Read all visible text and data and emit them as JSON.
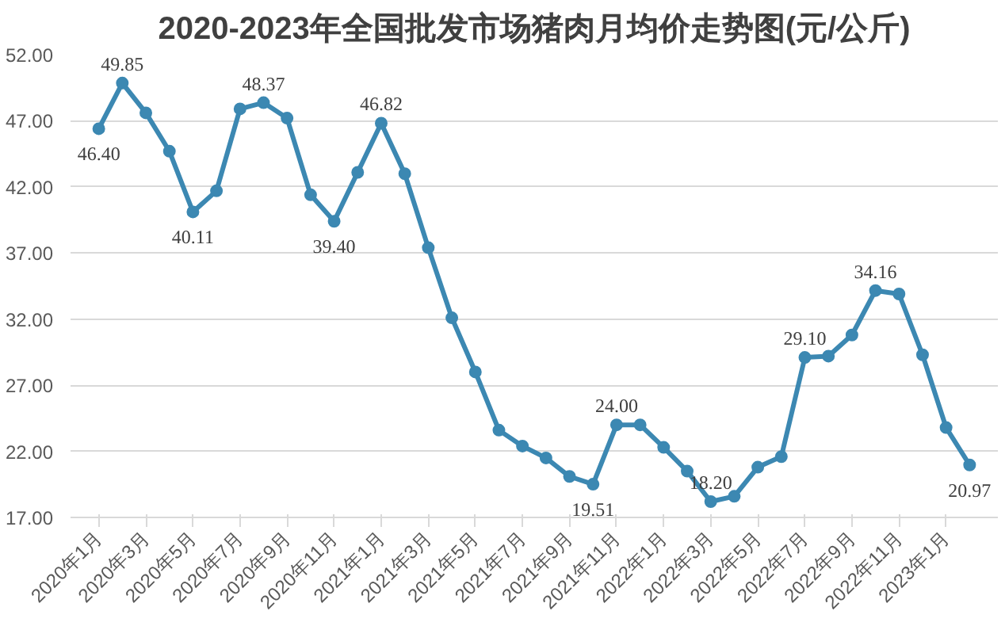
{
  "chart_data": {
    "type": "line",
    "title": "2020-2023年全国批发市场猪肉月均价走势图(元/公斤)",
    "categories": [
      "2020年1月",
      null,
      "2020年3月",
      null,
      "2020年5月",
      null,
      "2020年7月",
      null,
      "2020年9月",
      null,
      "2020年11月",
      null,
      "2021年1月",
      null,
      "2021年3月",
      null,
      "2021年5月",
      null,
      "2021年7月",
      null,
      "2021年9月",
      null,
      "2021年11月",
      null,
      "2022年1月",
      null,
      "2022年3月",
      null,
      "2022年5月",
      null,
      "2022年7月",
      null,
      "2022年9月",
      null,
      "2022年11月",
      null,
      "2023年1月",
      null
    ],
    "series": [
      {
        "color": "#3c88b2",
        "values": [
          46.4,
          49.85,
          47.6,
          44.7,
          40.11,
          41.7,
          47.9,
          48.37,
          47.2,
          41.4,
          39.4,
          43.1,
          46.82,
          43.0,
          37.4,
          32.1,
          28.0,
          23.6,
          22.4,
          21.5,
          20.1,
          19.51,
          24.0,
          24.0,
          22.3,
          20.5,
          18.2,
          18.6,
          20.8,
          21.6,
          29.1,
          29.2,
          30.8,
          34.16,
          33.9,
          29.3,
          23.8,
          20.97
        ],
        "value_labels": [
          "46.40",
          "49.85",
          null,
          null,
          "40.11",
          null,
          null,
          "48.37",
          null,
          null,
          "39.40",
          null,
          "46.82",
          null,
          null,
          null,
          null,
          null,
          null,
          null,
          null,
          "19.51",
          "24.00",
          null,
          null,
          null,
          "18.20",
          null,
          null,
          null,
          "29.10",
          null,
          null,
          "34.16",
          null,
          null,
          null,
          "20.97"
        ]
      }
    ],
    "ylim": [
      17,
      52
    ],
    "yticks": [
      {
        "value": 17,
        "label": "17.00"
      },
      {
        "value": 22,
        "label": "22.00"
      },
      {
        "value": 27,
        "label": "27.00"
      },
      {
        "value": 32,
        "label": "32.00"
      },
      {
        "value": 37,
        "label": "37.00"
      },
      {
        "value": 42,
        "label": "42.00"
      },
      {
        "value": 47,
        "label": "47.00"
      },
      {
        "value": 52,
        "label": "52.00"
      }
    ],
    "grid": "y",
    "marker": "circle",
    "line_style": "solid"
  }
}
